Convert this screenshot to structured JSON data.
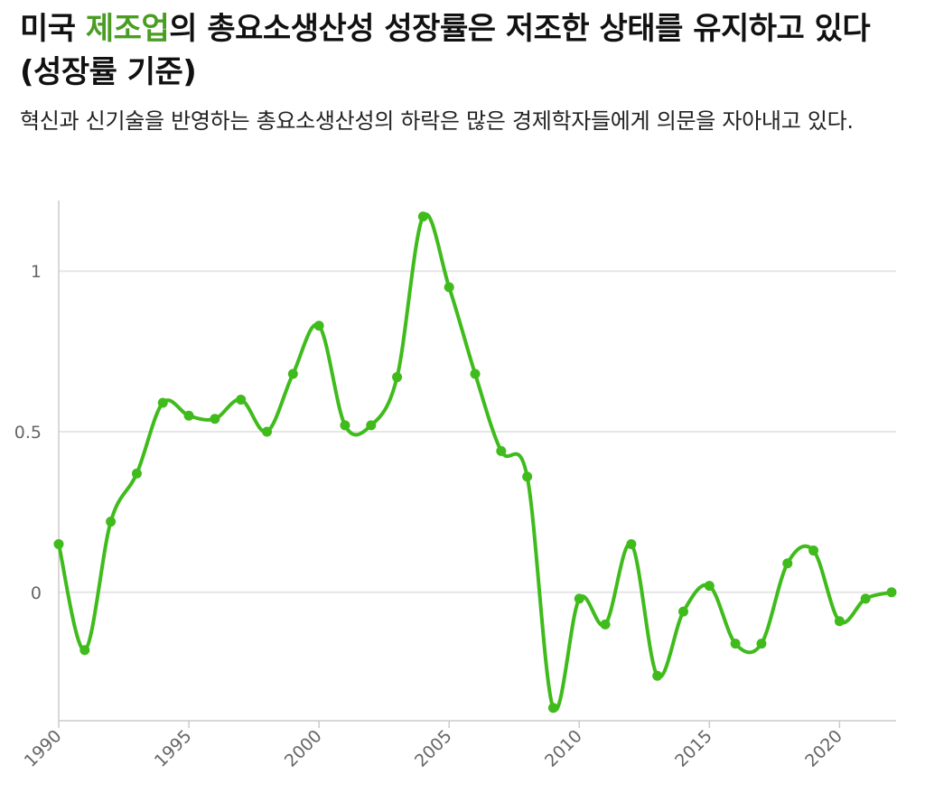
{
  "title": {
    "prefix": "미국 ",
    "highlight": "제조업",
    "suffix": "의 총요소생산성 성장률은 저조한 상태를 유지하고 있다 (성장률 기준)"
  },
  "subtitle": "혁신과 신기술을 반영하는 총요소생산성의 하락은 많은 경제학자들에게 의문을 자아내고 있다.",
  "colors": {
    "accent": "#4a9d23",
    "line": "#3fbb1c",
    "grid": "#e6e6e6",
    "axis": "#cccccc"
  },
  "chart_data": {
    "type": "line",
    "x": [
      1990,
      1991,
      1992,
      1993,
      1994,
      1995,
      1996,
      1997,
      1998,
      1999,
      2000,
      2001,
      2002,
      2003,
      2004,
      2005,
      2006,
      2007,
      2008,
      2009,
      2010,
      2011,
      2012,
      2013,
      2014,
      2015,
      2016,
      2017,
      2018,
      2019,
      2020,
      2021,
      2022
    ],
    "series": [
      {
        "values": [
          0.15,
          -0.18,
          0.22,
          0.37,
          0.59,
          0.55,
          0.54,
          0.6,
          0.5,
          0.68,
          0.83,
          0.52,
          0.52,
          0.67,
          1.17,
          0.95,
          0.68,
          0.44,
          0.36,
          -0.36,
          -0.02,
          -0.1,
          0.15,
          -0.26,
          -0.06,
          0.02,
          -0.16,
          -0.16,
          0.09,
          0.13,
          -0.09,
          -0.02,
          0.0
        ]
      }
    ],
    "yticks": [
      0,
      0.5,
      1
    ],
    "ytick_labels": [
      "0",
      "0.5",
      "1"
    ],
    "xticks": [
      1990,
      1995,
      2000,
      2005,
      2010,
      2015,
      2020
    ],
    "xtick_labels": [
      "1990",
      "1995",
      "2000",
      "2005",
      "2010",
      "2015",
      "2020"
    ],
    "xlim": [
      1990,
      2022
    ],
    "ylim": [
      -0.4,
      1.22
    ],
    "grid": true,
    "xlabel": "",
    "ylabel": ""
  }
}
